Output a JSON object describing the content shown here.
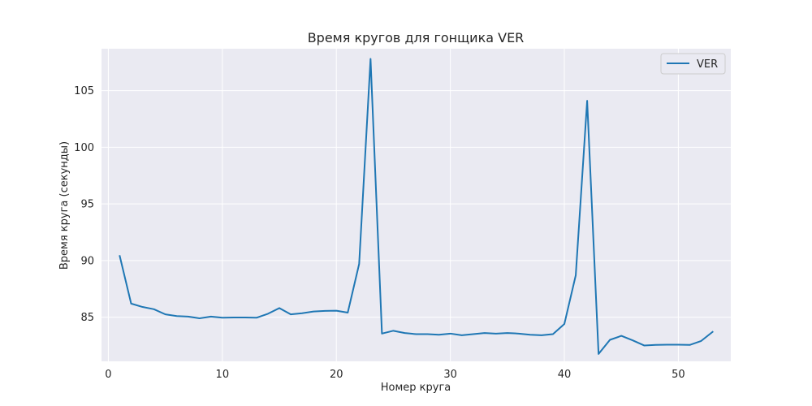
{
  "chart_data": {
    "type": "line",
    "title": "Время кругов для гонщика VER",
    "xlabel": "Номер круга",
    "ylabel": "Время круга (секунды)",
    "xlim": [
      -0.6,
      54.6
    ],
    "ylim": [
      81.1,
      108.7
    ],
    "xticks": [
      0,
      10,
      20,
      30,
      40,
      50
    ],
    "yticks": [
      85,
      90,
      95,
      100,
      105
    ],
    "xtick_labels": [
      "0",
      "10",
      "20",
      "30",
      "40",
      "50"
    ],
    "ytick_labels": [
      "85",
      "90",
      "95",
      "100",
      "105"
    ],
    "grid": true,
    "legend_position": "top-right",
    "series": [
      {
        "name": "VER",
        "color": "#1f77b4",
        "x": [
          1,
          2,
          3,
          4,
          5,
          6,
          7,
          8,
          9,
          10,
          11,
          12,
          13,
          14,
          15,
          16,
          17,
          18,
          19,
          20,
          21,
          22,
          23,
          24,
          25,
          26,
          27,
          28,
          29,
          30,
          31,
          32,
          33,
          34,
          35,
          36,
          37,
          38,
          39,
          40,
          41,
          42,
          43,
          44,
          45,
          46,
          47,
          48,
          49,
          50,
          51,
          52,
          53
        ],
        "y": [
          90.4,
          86.2,
          85.9,
          85.7,
          85.25,
          85.1,
          85.05,
          84.9,
          85.05,
          84.95,
          84.97,
          84.97,
          84.95,
          85.3,
          85.8,
          85.25,
          85.35,
          85.5,
          85.55,
          85.57,
          85.4,
          89.7,
          107.8,
          83.55,
          83.8,
          83.6,
          83.5,
          83.5,
          83.45,
          83.55,
          83.4,
          83.5,
          83.6,
          83.55,
          83.6,
          83.55,
          83.45,
          83.4,
          83.5,
          84.4,
          88.7,
          104.1,
          81.75,
          83.0,
          83.35,
          82.95,
          82.5,
          82.55,
          82.57,
          82.57,
          82.55,
          82.9,
          83.7
        ]
      }
    ]
  }
}
